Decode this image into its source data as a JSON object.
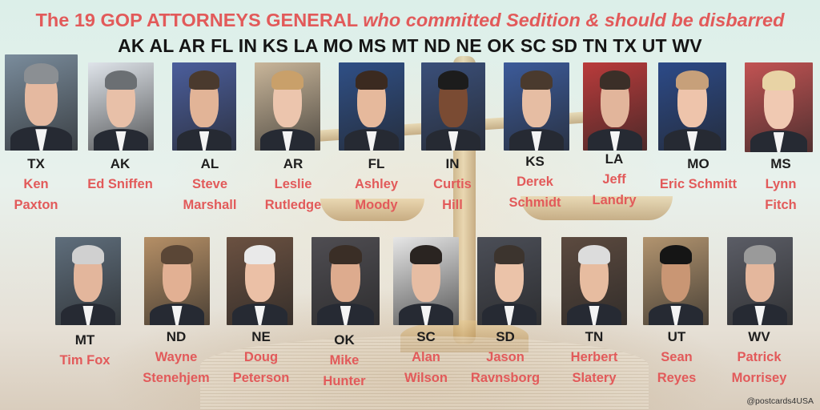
{
  "headline": {
    "main": "The 19 GOP ATTORNEYS GENERAL",
    "italic": "who committed Sedition & should be disbarred"
  },
  "states_line": "AK AL AR FL IN KS LA MO MS MT ND NE OK SC SD TN TX UT WV",
  "credit": "@postcards4USA",
  "colors": {
    "accent_red": "#e25a5a",
    "text_dark": "#1e1e1e",
    "background": "#dcefe9"
  },
  "row1": [
    {
      "state": "TX",
      "first": "Ken",
      "last": "Paxton",
      "portrait": "tx-portrait-icon"
    },
    {
      "state": "AK",
      "first": "Ed Sniffen",
      "last": "",
      "portrait": "ak-portrait-icon"
    },
    {
      "state": "AL",
      "first": "Steve",
      "last": "Marshall",
      "portrait": "al-portrait-icon"
    },
    {
      "state": "AR",
      "first": "Leslie",
      "last": "Rutledge",
      "portrait": "ar-portrait-icon"
    },
    {
      "state": "FL",
      "first": "Ashley",
      "last": "Moody",
      "portrait": "fl-portrait-icon"
    },
    {
      "state": "IN",
      "first": "Curtis",
      "last": "Hill",
      "portrait": "in-portrait-icon"
    },
    {
      "state": "KS",
      "first": "Derek",
      "last": "Schmidt",
      "portrait": "ks-portrait-icon"
    },
    {
      "state": "LA",
      "first": "Jeff",
      "last": "Landry",
      "portrait": "la-portrait-icon"
    },
    {
      "state": "MO",
      "first": "Eric Schmitt",
      "last": "",
      "portrait": "mo-portrait-icon"
    },
    {
      "state": "MS",
      "first": "Lynn",
      "last": "Fitch",
      "portrait": "ms-portrait-icon"
    }
  ],
  "row2": [
    {
      "state": "MT",
      "first": "Tim Fox",
      "last": "",
      "portrait": "mt-portrait-icon"
    },
    {
      "state": "ND",
      "first": "Wayne",
      "last": "Stenehjem",
      "portrait": "nd-portrait-icon"
    },
    {
      "state": "NE",
      "first": "Doug",
      "last": "Peterson",
      "portrait": "ne-portrait-icon"
    },
    {
      "state": "OK",
      "first": "Mike",
      "last": "Hunter",
      "portrait": "ok-portrait-icon"
    },
    {
      "state": "SC",
      "first": "Alan",
      "last": "Wilson",
      "portrait": "sc-portrait-icon"
    },
    {
      "state": "SD",
      "first": "Jason",
      "last": "Ravnsborg",
      "portrait": "sd-portrait-icon"
    },
    {
      "state": "TN",
      "first": "Herbert",
      "last": "Slatery",
      "portrait": "tn-portrait-icon"
    },
    {
      "state": "UT",
      "first": "Sean",
      "last": "Reyes",
      "portrait": "ut-portrait-icon"
    },
    {
      "state": "WV",
      "first": "Patrick",
      "last": "Morrisey",
      "portrait": "wv-portrait-icon"
    }
  ]
}
